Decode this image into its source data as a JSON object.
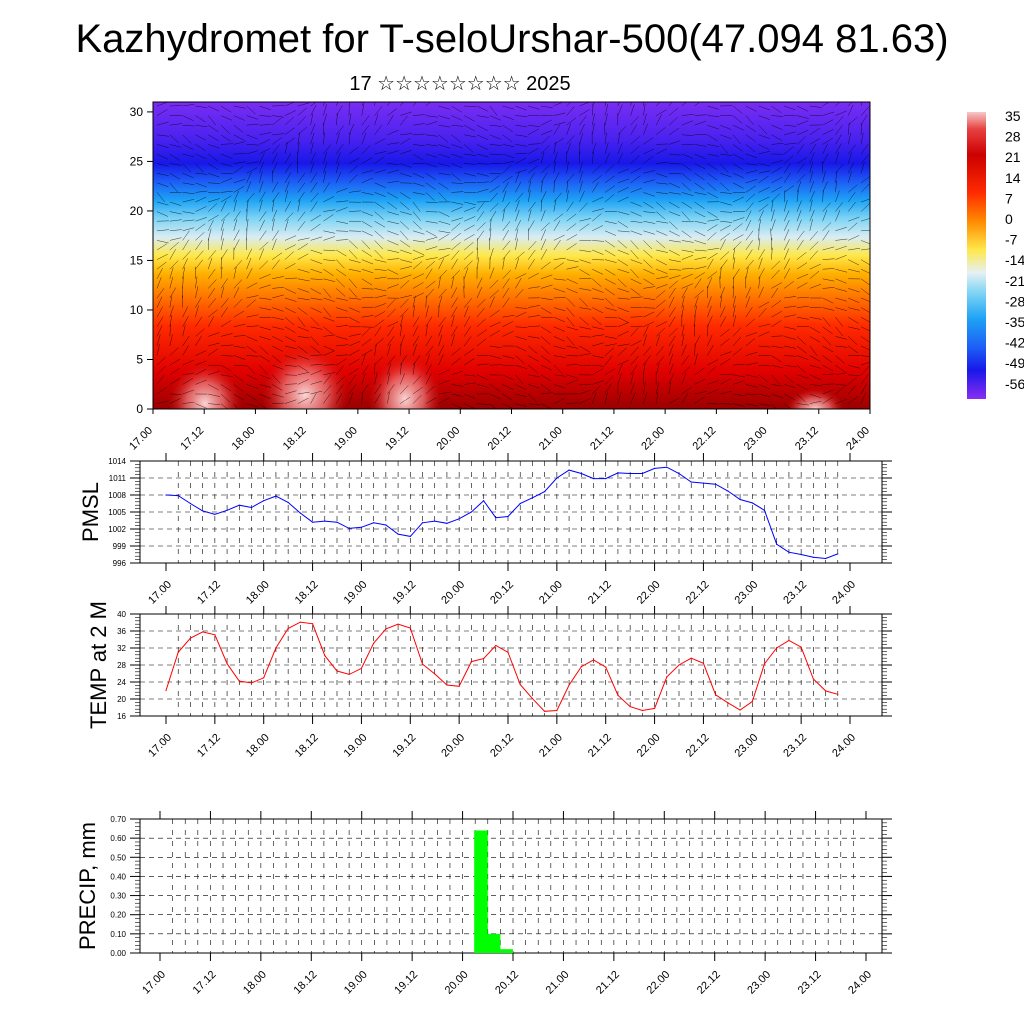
{
  "title": "Kazhydromet for T-seloUrshar-500(47.094 81.63)",
  "subtitle": "17 ☆☆☆☆☆☆☆☆ 2025",
  "colors": {
    "pmsl": "#0000ff",
    "temp": "#ff0000",
    "precip": "#00ff00",
    "wind": "#000000"
  },
  "x_ticks": [
    "17.00",
    "17.12",
    "18.00",
    "18.12",
    "19.00",
    "19.12",
    "20.00",
    "20.12",
    "21.00",
    "21.12",
    "22.00",
    "22.12",
    "23.00",
    "23.12",
    "24.00"
  ],
  "chart_data": [
    {
      "type": "heatmap",
      "description_free": true,
      "yticks": [
        0,
        5,
        10,
        15,
        20,
        25,
        30
      ],
      "ylim": [
        0,
        31
      ],
      "colorbar": {
        "labels": [
          "35",
          "28",
          "21",
          "14",
          "7",
          "0",
          "-7",
          "-14",
          "-21",
          "-28",
          "-35",
          "-42",
          "-49",
          "-56"
        ]
      }
    },
    {
      "type": "line",
      "ylabel": "PMSL",
      "ylim": [
        996,
        1014
      ],
      "yticks": [
        996,
        999,
        1002,
        1005,
        1008,
        1011,
        1014
      ],
      "x_hours": [
        0,
        3,
        6,
        9,
        12,
        15,
        18,
        21,
        24,
        27,
        30,
        33,
        36,
        39,
        42,
        45,
        48,
        51,
        54,
        57,
        60,
        63,
        66,
        69,
        72,
        75,
        78,
        81,
        84,
        87,
        90,
        93,
        96,
        99,
        102,
        105,
        108,
        111,
        114,
        117,
        120,
        123,
        126,
        129,
        132,
        135,
        138,
        141,
        144,
        147,
        150,
        153,
        156,
        159,
        162,
        165
      ],
      "values": [
        1008,
        1007.9,
        1006.5,
        1005.2,
        1004.6,
        1005.3,
        1006.2,
        1005.8,
        1007,
        1007.8,
        1006.7,
        1004.8,
        1003.2,
        1003.4,
        1003.2,
        1002.1,
        1002.3,
        1003.1,
        1002.7,
        1001.1,
        1000.7,
        1003.1,
        1003.4,
        1003,
        1003.8,
        1005,
        1007,
        1004,
        1004.2,
        1006.5,
        1007.5,
        1008.6,
        1011,
        1012.4,
        1011.8,
        1010.9,
        1010.9,
        1011.9,
        1011.8,
        1011.8,
        1012.7,
        1012.9,
        1011.8,
        1010.3,
        1010.1,
        1009.9,
        1008.7,
        1007.2,
        1006.6,
        1005.3,
        999.3,
        997.9,
        997.5,
        997,
        996.8,
        997.6
      ]
    },
    {
      "type": "line",
      "ylabel": "TEMP at 2 M",
      "ylim": [
        16,
        40
      ],
      "yticks": [
        16,
        20,
        24,
        28,
        32,
        36,
        40
      ],
      "x_hours": [
        0,
        3,
        6,
        9,
        12,
        15,
        18,
        21,
        24,
        27,
        30,
        33,
        36,
        39,
        42,
        45,
        48,
        51,
        54,
        57,
        60,
        63,
        66,
        69,
        72,
        75,
        78,
        81,
        84,
        87,
        90,
        93,
        96,
        99,
        102,
        105,
        108,
        111,
        114,
        117,
        120,
        123,
        126,
        129,
        132,
        135,
        138,
        141,
        144,
        147,
        150,
        153,
        156,
        159,
        162,
        165
      ],
      "values": [
        22,
        31,
        34.3,
        35.8,
        35.1,
        28.3,
        24.2,
        23.8,
        25,
        32,
        36.6,
        38.1,
        37.7,
        30.2,
        26.6,
        25.8,
        27.2,
        33.1,
        36.5,
        37.6,
        36.7,
        28.2,
        25.9,
        23.3,
        23,
        28.8,
        29.5,
        32.6,
        31,
        23.4,
        20.1,
        17.1,
        17.3,
        23.3,
        27.6,
        29.2,
        27.5,
        20.9,
        18.2,
        17.3,
        17.8,
        25.2,
        28,
        29.6,
        28.4,
        21,
        19.1,
        17.4,
        19.4,
        28.3,
        32,
        33.8,
        32.2,
        24.7,
        21.9,
        21.1
      ]
    },
    {
      "type": "bar",
      "ylabel": "PRECIP, mm",
      "ylim": [
        0,
        0.7
      ],
      "yticks": [
        "0.00",
        "0.10",
        "0.20",
        "0.30",
        "0.40",
        "0.50",
        "0.60",
        "0.70"
      ],
      "bars": [
        {
          "x_hour": 75,
          "value": 0.64
        },
        {
          "x_hour": 78,
          "value": 0.1
        },
        {
          "x_hour": 81,
          "value": 0.02
        }
      ]
    }
  ]
}
